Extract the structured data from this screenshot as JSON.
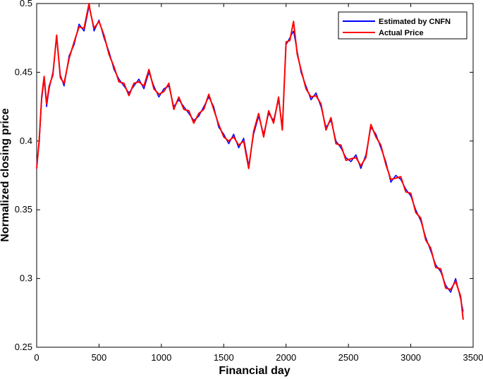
{
  "chart_data": {
    "type": "line",
    "title": "",
    "xlabel": "Financial day",
    "ylabel": "Normalized closing price",
    "xlim": [
      0,
      3500
    ],
    "ylim": [
      0.25,
      0.5
    ],
    "xticks": [
      "0",
      "500",
      "1000",
      "1500",
      "2000",
      "2500",
      "3000",
      "3500"
    ],
    "yticks": [
      "0.25",
      "0.3",
      "0.35",
      "0.4",
      "0.45",
      "0.5"
    ],
    "legend_position": "top-right",
    "grid": false,
    "series": [
      {
        "name": "Estimated by CNFN",
        "color": "#0000ff",
        "x": [
          0,
          20,
          40,
          60,
          80,
          100,
          130,
          160,
          190,
          220,
          260,
          300,
          340,
          380,
          420,
          430,
          460,
          500,
          540,
          580,
          620,
          660,
          700,
          740,
          780,
          820,
          860,
          900,
          940,
          980,
          1020,
          1060,
          1100,
          1140,
          1180,
          1220,
          1260,
          1300,
          1340,
          1380,
          1420,
          1460,
          1500,
          1540,
          1580,
          1620,
          1660,
          1700,
          1740,
          1780,
          1820,
          1860,
          1900,
          1940,
          1970,
          2000,
          2030,
          2060,
          2090,
          2120,
          2160,
          2200,
          2240,
          2280,
          2320,
          2360,
          2400,
          2440,
          2480,
          2520,
          2560,
          2600,
          2640,
          2680,
          2720,
          2760,
          2800,
          2840,
          2880,
          2920,
          2960,
          3000,
          3040,
          3080,
          3120,
          3160,
          3200,
          3240,
          3280,
          3320,
          3360,
          3400,
          3420
        ],
        "y": [
          0.383,
          0.398,
          0.43,
          0.445,
          0.425,
          0.438,
          0.45,
          0.475,
          0.448,
          0.44,
          0.462,
          0.47,
          0.485,
          0.48,
          0.498,
          0.495,
          0.48,
          0.488,
          0.475,
          0.465,
          0.452,
          0.445,
          0.44,
          0.435,
          0.44,
          0.445,
          0.438,
          0.45,
          0.44,
          0.432,
          0.438,
          0.44,
          0.425,
          0.43,
          0.425,
          0.42,
          0.415,
          0.418,
          0.425,
          0.432,
          0.425,
          0.41,
          0.405,
          0.398,
          0.405,
          0.395,
          0.402,
          0.382,
          0.405,
          0.418,
          0.405,
          0.42,
          0.415,
          0.43,
          0.41,
          0.47,
          0.475,
          0.48,
          0.465,
          0.45,
          0.44,
          0.43,
          0.435,
          0.425,
          0.41,
          0.415,
          0.4,
          0.395,
          0.388,
          0.385,
          0.39,
          0.38,
          0.39,
          0.41,
          0.405,
          0.395,
          0.385,
          0.37,
          0.375,
          0.372,
          0.365,
          0.36,
          0.35,
          0.342,
          0.33,
          0.32,
          0.31,
          0.305,
          0.295,
          0.29,
          0.3,
          0.285,
          0.276
        ]
      },
      {
        "name": "Actual Price",
        "color": "#ff0000",
        "x": [
          0,
          20,
          40,
          60,
          80,
          100,
          130,
          160,
          190,
          220,
          260,
          300,
          340,
          380,
          420,
          430,
          460,
          500,
          540,
          580,
          620,
          660,
          700,
          740,
          780,
          820,
          860,
          900,
          940,
          980,
          1020,
          1060,
          1100,
          1140,
          1180,
          1220,
          1260,
          1300,
          1340,
          1380,
          1420,
          1460,
          1500,
          1540,
          1580,
          1620,
          1660,
          1700,
          1740,
          1780,
          1820,
          1860,
          1900,
          1940,
          1970,
          2000,
          2030,
          2060,
          2090,
          2120,
          2160,
          2200,
          2240,
          2280,
          2320,
          2360,
          2400,
          2440,
          2480,
          2520,
          2560,
          2600,
          2640,
          2680,
          2720,
          2760,
          2800,
          2840,
          2880,
          2920,
          2960,
          3000,
          3040,
          3080,
          3120,
          3160,
          3200,
          3240,
          3280,
          3320,
          3360,
          3400,
          3420
        ],
        "y": [
          0.38,
          0.4,
          0.432,
          0.447,
          0.427,
          0.44,
          0.448,
          0.477,
          0.446,
          0.442,
          0.46,
          0.472,
          0.483,
          0.482,
          0.5,
          0.494,
          0.482,
          0.487,
          0.477,
          0.463,
          0.454,
          0.443,
          0.442,
          0.433,
          0.442,
          0.443,
          0.44,
          0.452,
          0.438,
          0.434,
          0.436,
          0.442,
          0.423,
          0.432,
          0.423,
          0.422,
          0.413,
          0.42,
          0.423,
          0.434,
          0.423,
          0.412,
          0.403,
          0.4,
          0.403,
          0.397,
          0.4,
          0.38,
          0.407,
          0.42,
          0.403,
          0.422,
          0.413,
          0.432,
          0.408,
          0.472,
          0.473,
          0.487,
          0.463,
          0.452,
          0.438,
          0.432,
          0.433,
          0.427,
          0.408,
          0.417,
          0.398,
          0.397,
          0.386,
          0.387,
          0.388,
          0.382,
          0.388,
          0.412,
          0.403,
          0.397,
          0.383,
          0.372,
          0.373,
          0.374,
          0.363,
          0.362,
          0.348,
          0.344,
          0.328,
          0.322,
          0.308,
          0.307,
          0.293,
          0.292,
          0.298,
          0.287,
          0.27
        ]
      }
    ]
  }
}
